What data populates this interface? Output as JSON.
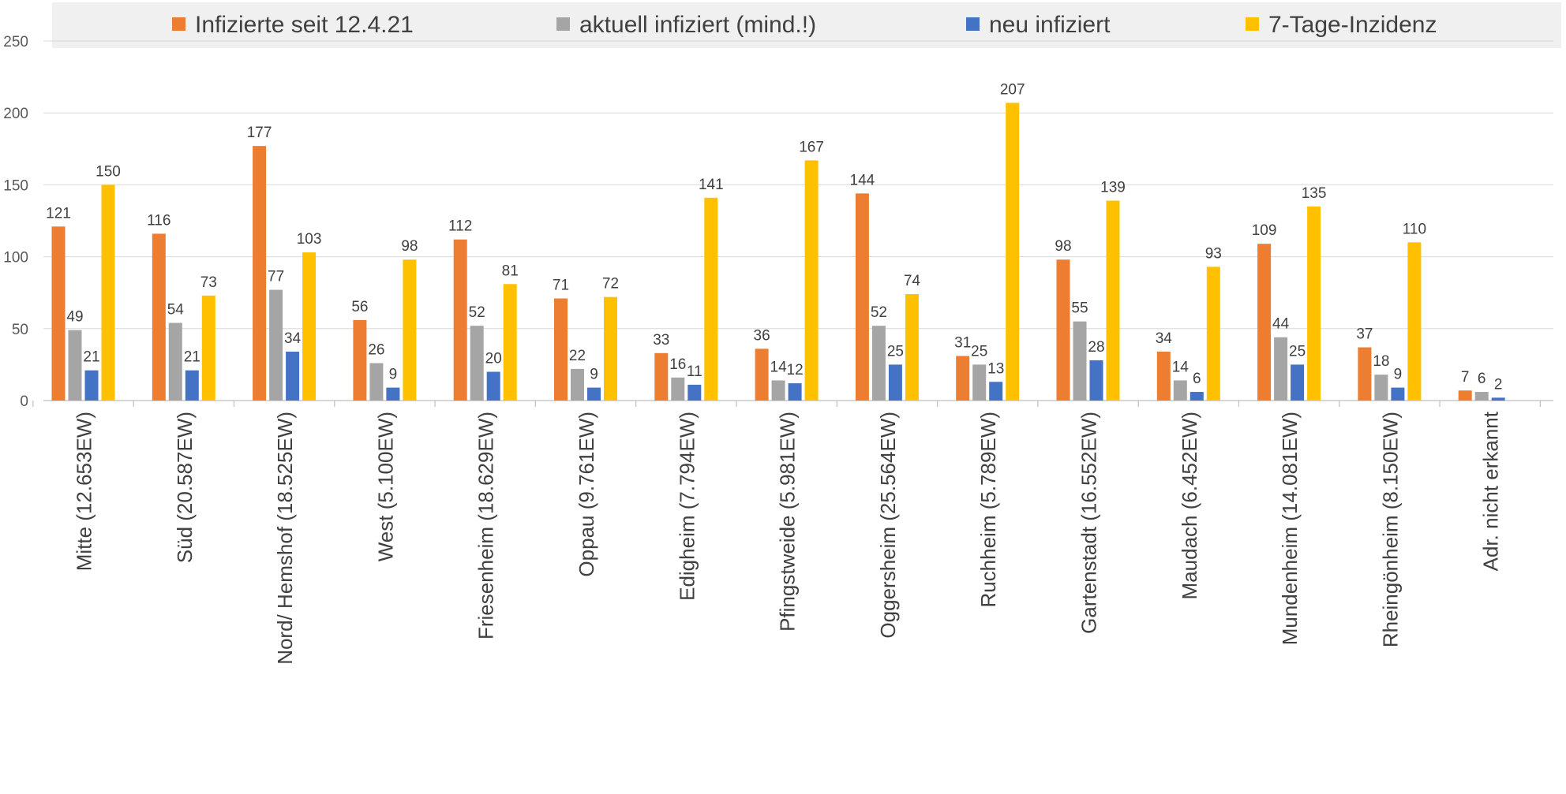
{
  "chart_data": {
    "type": "bar",
    "title": "",
    "xlabel": "",
    "ylabel": "",
    "ylim": [
      0,
      250
    ],
    "yticks": [
      0,
      50,
      100,
      150,
      200,
      250
    ],
    "grid": true,
    "legend_position": "top",
    "categories": [
      "Mitte (12.653EW)",
      "Süd (20.587EW)",
      "Nord/ Hemshof (18.525EW)",
      "West (5.100EW)",
      "Friesenheim (18.629EW)",
      "Oppau (9.761EW)",
      "Edigheim (7.794EW)",
      "Pfingstweide (5.981EW)",
      "Oggersheim (25.564EW)",
      "Ruchheim (5.789EW)",
      "Gartenstadt (16.552EW)",
      "Maudach (6.452EW)",
      "Mundenheim (14.081EW)",
      "Rheingönheim (8.150EW)",
      "Adr. nicht erkannt"
    ],
    "series": [
      {
        "name": "Infizierte seit 12.4.21",
        "color": "#ed7d31",
        "values": [
          121,
          116,
          177,
          56,
          112,
          71,
          33,
          36,
          144,
          31,
          98,
          34,
          109,
          37,
          7
        ]
      },
      {
        "name": "aktuell infiziert (mind.!)",
        "color": "#a5a5a5",
        "values": [
          49,
          54,
          77,
          26,
          52,
          22,
          16,
          14,
          52,
          25,
          55,
          14,
          44,
          18,
          6
        ]
      },
      {
        "name": "neu infiziert",
        "color": "#4472c4",
        "values": [
          21,
          21,
          34,
          9,
          20,
          9,
          11,
          12,
          25,
          13,
          28,
          6,
          25,
          9,
          2
        ]
      },
      {
        "name": "7-Tage-Inzidenz",
        "color": "#ffc000",
        "values": [
          150,
          73,
          103,
          98,
          81,
          72,
          141,
          167,
          74,
          207,
          139,
          93,
          135,
          110,
          null
        ]
      }
    ]
  }
}
